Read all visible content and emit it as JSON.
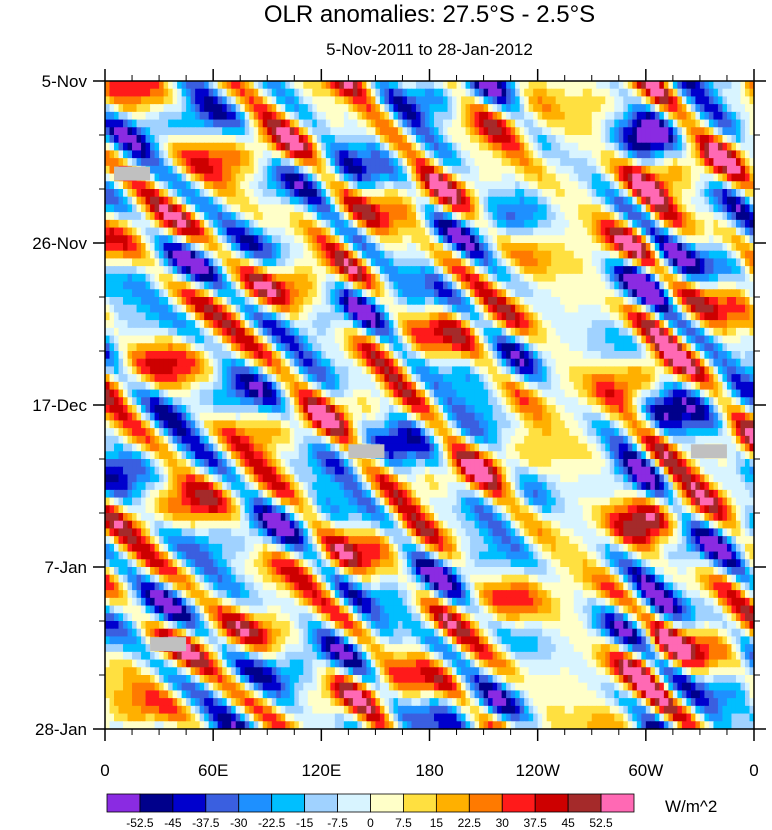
{
  "chart_data": {
    "type": "heatmap",
    "title": "OLR anomalies: 27.5°S - 2.5°S",
    "subtitle": "5-Nov-2011 to 28-Jan-2012",
    "x_ticks": [
      "0",
      "60E",
      "120E",
      "180",
      "120W",
      "60W",
      "0"
    ],
    "x_tick_lon": [
      0,
      60,
      120,
      180,
      240,
      300,
      360
    ],
    "xlim": [
      0,
      360
    ],
    "y_ticks": [
      "5-Nov",
      "26-Nov",
      "17-Dec",
      "7-Jan",
      "28-Jan"
    ],
    "y_tick_day": [
      0,
      21,
      42,
      63,
      84
    ],
    "ylim": [
      0,
      84
    ],
    "colorbar": {
      "units": "W/m^2",
      "levels": [
        "-52.5",
        "-45",
        "-37.5",
        "-30",
        "-22.5",
        "-15",
        "-7.5",
        "0",
        "7.5",
        "15",
        "22.5",
        "30",
        "37.5",
        "45",
        "52.5"
      ],
      "colors": [
        "#8a2be2",
        "#00008b",
        "#0000cd",
        "#3a5fe0",
        "#1e90ff",
        "#00bfff",
        "#a0d2ff",
        "#d8f4ff",
        "#ffffc8",
        "#ffe040",
        "#ffb000",
        "#ff7a00",
        "#ff1a1a",
        "#cd0000",
        "#a52a2a",
        "#ff69b4"
      ]
    },
    "missing_data": [
      {
        "lon": 15,
        "day": 12
      },
      {
        "lon": 145,
        "day": 48
      },
      {
        "lon": 335,
        "day": 48
      },
      {
        "lon": 35,
        "day": 73
      }
    ]
  }
}
